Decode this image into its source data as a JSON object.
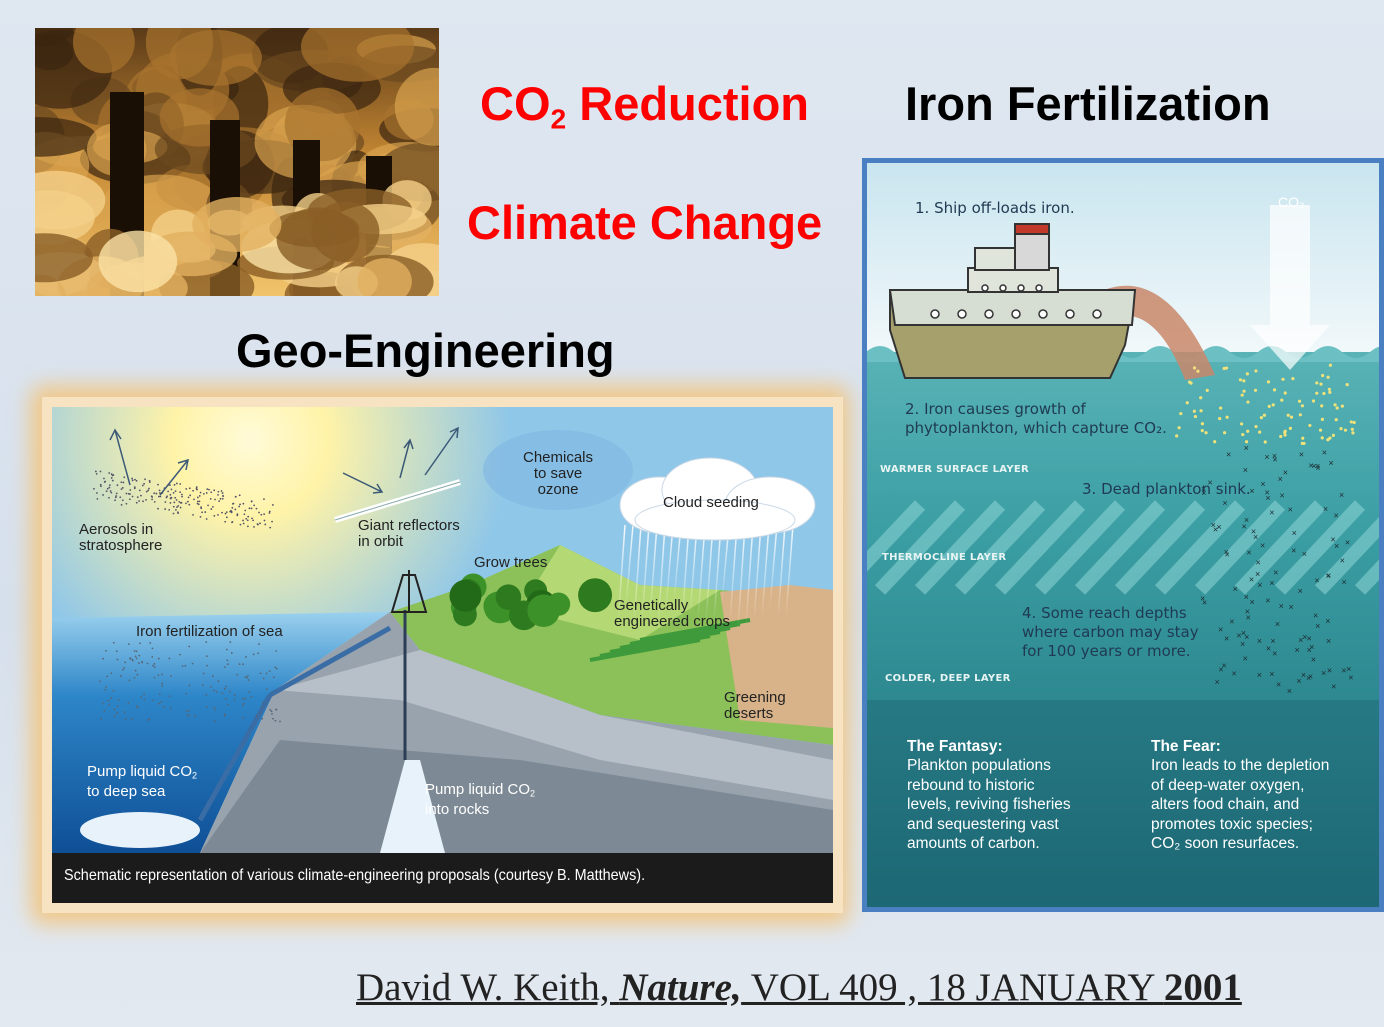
{
  "title": {
    "co2_reduction": {
      "prefix": "CO",
      "subscript": "2",
      "suffix": " Reduction"
    },
    "climate_change": "Climate Change",
    "iron_fertilization": "Iron Fertilization",
    "geo_engineering": "Geo-Engineering"
  },
  "geo_diagram": {
    "labels": {
      "aerosols": [
        "Aerosols in",
        "stratosphere"
      ],
      "reflectors": [
        "Giant reflectors",
        "in orbit"
      ],
      "chemicals": [
        "Chemicals",
        "to save",
        "ozone"
      ],
      "cloud": "Cloud seeding",
      "trees": "Grow trees",
      "crops": [
        "Genetically",
        "engineered crops"
      ],
      "iron": "Iron fertilization of sea",
      "deserts": [
        "Greening",
        "deserts"
      ],
      "deep_sea": {
        "prefix": "Pump liquid CO",
        "subscript": "2",
        "line2": "to deep sea"
      },
      "rocks": {
        "prefix": "Pump liquid CO",
        "subscript": "2",
        "line2": "into rocks"
      }
    },
    "caption": "Schematic representation of various climate-engineering proposals (courtesy B. Matthews)."
  },
  "iron_diagram": {
    "step1": "1. Ship off-loads iron.",
    "co2": "CO₂",
    "step2": [
      "2. Iron causes growth of",
      "phytoplankton, which capture CO₂."
    ],
    "warmer": "WARMER SURFACE LAYER",
    "step3": "3. Dead plankton sink.",
    "thermocline": "THERMOCLINE LAYER",
    "step4": [
      "4. Some reach depths",
      "where carbon may stay",
      "for 100 years or more."
    ],
    "colder": "COLDER, DEEP LAYER",
    "fantasy": {
      "heading": "The Fantasy:",
      "lines": [
        "Plankton populations",
        "rebound to historic",
        "levels, reviving fisheries",
        "and sequestering vast",
        "amounts of carbon."
      ]
    },
    "fear": {
      "heading": "The Fear:",
      "lines": [
        "Iron leads to the depletion",
        "of deep-water oxygen,",
        "alters food chain, and",
        "promotes toxic species;",
        "CO₂ soon resurfaces."
      ]
    }
  },
  "citation": {
    "author": "David W. Keith, ",
    "journal": "Nature,",
    "volume": " VOL 409 , 18 JANUARY ",
    "year": "2001"
  }
}
